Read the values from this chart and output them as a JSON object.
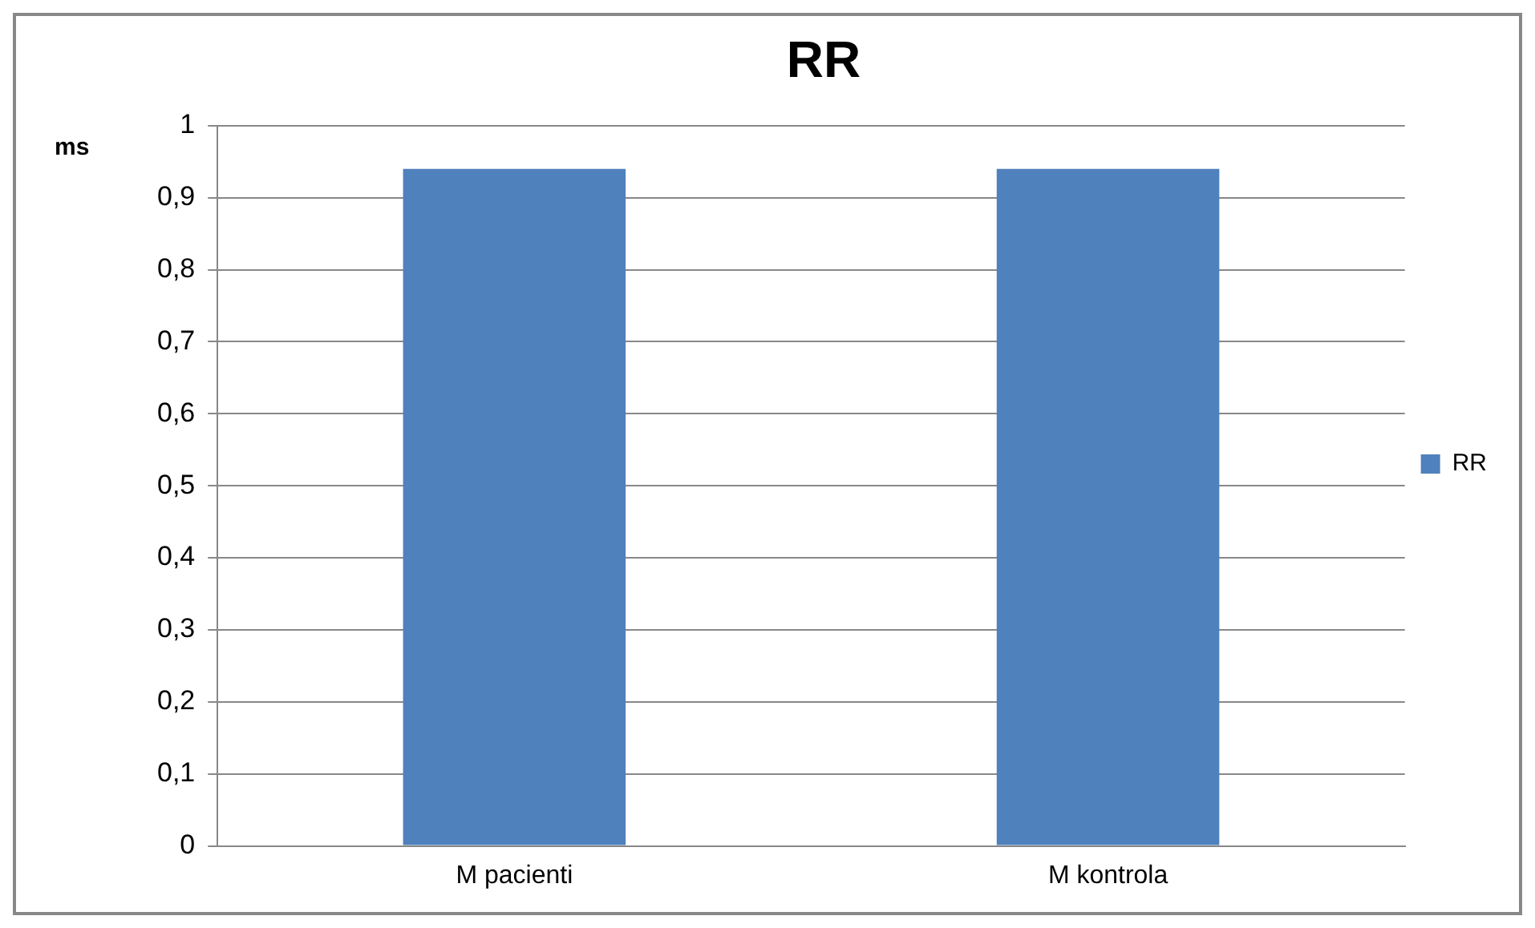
{
  "chart_data": {
    "type": "bar",
    "title": "RR",
    "ylabel": "ms",
    "categories": [
      "M pacienti",
      "M kontrola"
    ],
    "series": [
      {
        "name": "RR",
        "color": "#4f81bd",
        "values": [
          0.94,
          0.94
        ]
      }
    ],
    "ylim": [
      0,
      1
    ],
    "yticks": [
      0,
      {
        "value": 0.1,
        "label": "0,1"
      },
      {
        "value": 0.2,
        "label": "0,2"
      },
      {
        "value": 0.3,
        "label": "0,3"
      },
      {
        "value": 0.4,
        "label": "0,4"
      },
      {
        "value": 0.5,
        "label": "0,5"
      },
      {
        "value": 0.6,
        "label": "0,6"
      },
      {
        "value": 0.7,
        "label": "0,7"
      },
      {
        "value": 0.8,
        "label": "0,8"
      },
      {
        "value": 0.9,
        "label": "0,9"
      },
      1
    ],
    "grid": "y",
    "legend": "right"
  }
}
